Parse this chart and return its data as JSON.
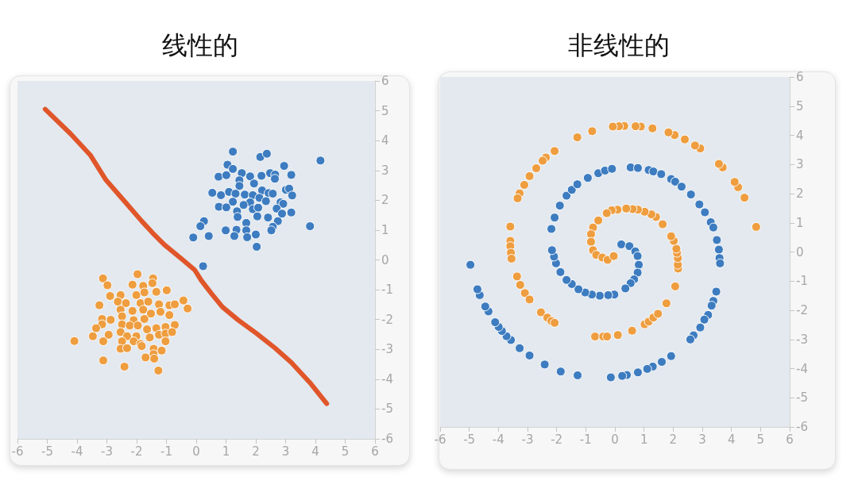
{
  "chart_data": [
    {
      "type": "scatter",
      "title": "线性的",
      "xlim": [
        -6,
        6
      ],
      "ylim": [
        -6,
        6
      ],
      "xticks": [
        -6,
        -5,
        -4,
        -3,
        -2,
        -1,
        0,
        1,
        2,
        3,
        4,
        5,
        6
      ],
      "yticks": [
        -6,
        -5,
        -4,
        -3,
        -2,
        -1,
        0,
        1,
        2,
        3,
        4,
        5,
        6
      ],
      "grid": false,
      "marker": "circle",
      "series": [
        {
          "color": "#3d7cc0",
          "x": [
            1.23,
            2.15,
            2.37,
            4.17,
            1.05,
            1.23,
            2.95,
            0.75,
            1.01,
            1.53,
            1.45,
            1.81,
            2.19,
            2.48,
            2.65,
            3.19,
            1.94,
            2.64,
            1.45,
            0.54,
            0.83,
            1.1,
            1.32,
            1.63,
            1.9,
            2.21,
            2.43,
            2.57,
            3.01,
            3.12,
            3.22,
            1.23,
            1.81,
            2.12,
            2.34,
            2.83,
            2.92,
            0.76,
            1.01,
            1.59,
            1.37,
            1.9,
            2.08,
            2.7,
            3.19,
            2.88,
            1.39,
            2.05,
            2.41,
            2.74,
            1.68,
            0.26,
            0.14,
            3.82,
            2.57,
            2.52,
            0.99,
            1.35,
            1.68,
            -0.1,
            0.42,
            1.28,
            1.71,
            2.0,
            2.03,
            0.23
          ],
          "values": [
            3.63,
            3.45,
            3.56,
            3.33,
            3.19,
            3.05,
            3.15,
            2.79,
            2.84,
            2.91,
            2.67,
            2.8,
            2.82,
            2.91,
            2.86,
            2.85,
            2.56,
            2.72,
            2.48,
            2.25,
            2.17,
            2.28,
            2.22,
            2.19,
            2.17,
            2.33,
            2.24,
            2.22,
            2.35,
            2.39,
            2.16,
            1.95,
            1.93,
            2.08,
            1.97,
            1.93,
            1.88,
            1.78,
            1.76,
            1.84,
            1.63,
            1.7,
            1.75,
            1.72,
            1.59,
            1.55,
            1.44,
            1.46,
            1.42,
            1.3,
            1.24,
            1.3,
            1.13,
            1.13,
            1.11,
            0.99,
            0.99,
            1.01,
            0.99,
            0.75,
            0.8,
            0.8,
            0.76,
            0.85,
            0.44,
            -0.21
          ]
        },
        {
          "color": "#ee9d3f",
          "x": [
            -1.97,
            -3.13,
            -1.45,
            -2.98,
            -2.14,
            -1.78,
            -1.47,
            -0.99,
            -2.89,
            -2.54,
            -2.01,
            -1.74,
            -1.34,
            -0.43,
            -0.29,
            -3.25,
            -2.63,
            -2.36,
            -1.87,
            -1.61,
            -1.25,
            -0.9,
            -0.72,
            -2.54,
            -2.14,
            -1.78,
            -1.2,
            -3.16,
            -2.87,
            -2.49,
            -2.1,
            -1.74,
            -1.52,
            -0.9,
            -3.16,
            -3.36,
            -2.49,
            -2.23,
            -1.96,
            -1.65,
            -1.34,
            -1.03,
            -0.72,
            -3.47,
            -2.94,
            -2.54,
            -2.32,
            -2.01,
            -1.56,
            -1.25,
            -1.03,
            -0.81,
            -4.09,
            -3.12,
            -2.49,
            -2.1,
            -1.87,
            -1.03,
            -2.54,
            -2.32,
            -1.83,
            -1.43,
            -1.16,
            -1.43,
            -1.7,
            -1.41,
            -3.12,
            -2.41,
            -1.27
          ],
          "values": [
            -0.48,
            -0.62,
            -0.62,
            -0.85,
            -0.83,
            -0.87,
            -0.78,
            -1.02,
            -1.21,
            -1.18,
            -1.18,
            -1.09,
            -1.07,
            -1.36,
            -1.63,
            -1.52,
            -1.4,
            -1.45,
            -1.45,
            -1.4,
            -1.49,
            -1.52,
            -1.49,
            -1.67,
            -1.71,
            -1.67,
            -1.74,
            -1.98,
            -2.01,
            -1.89,
            -2.02,
            -1.98,
            -1.8,
            -1.85,
            -2.16,
            -2.29,
            -2.16,
            -2.2,
            -2.2,
            -2.33,
            -2.29,
            -2.25,
            -2.18,
            -2.56,
            -2.51,
            -2.42,
            -2.56,
            -2.56,
            -2.6,
            -2.51,
            -2.47,
            -2.42,
            -2.72,
            -2.73,
            -2.73,
            -2.73,
            -2.82,
            -2.73,
            -2.98,
            -2.96,
            -2.89,
            -2.98,
            -3.04,
            -3.16,
            -3.27,
            -3.31,
            -3.37,
            -3.58,
            -3.71
          ]
        },
        {
          "type": "line",
          "color": "#e0562a",
          "marker": "none",
          "x": [
            -5.07,
            -4.22,
            -3.56,
            -3.03,
            -2.41,
            -1.83,
            -1.47,
            -1.07,
            -0.45,
            -0.05,
            0.17,
            0.52,
            0.88,
            1.41,
            2.03,
            2.65,
            3.19,
            3.81,
            4.38
          ],
          "values": [
            5.05,
            4.23,
            3.52,
            2.68,
            1.97,
            1.3,
            0.91,
            0.51,
            0,
            -0.34,
            -0.69,
            -1.14,
            -1.58,
            -2.02,
            -2.47,
            -2.96,
            -3.44,
            -4.11,
            -4.82
          ]
        }
      ]
    },
    {
      "type": "scatter",
      "title": "非线性的",
      "xlim": [
        -6,
        6
      ],
      "ylim": [
        -6,
        6
      ],
      "xticks": [
        -6,
        -5,
        -4,
        -3,
        -2,
        -1,
        0,
        1,
        2,
        3,
        4,
        5,
        6
      ],
      "yticks": [
        -6,
        -5,
        -4,
        -3,
        -2,
        -1,
        0,
        1,
        2,
        3,
        4,
        5,
        6
      ],
      "grid": false,
      "marker": "circle",
      "series": [
        {
          "color": "#ee9d3f",
          "x": [
            4.85,
            4.45,
            4.23,
            4.11,
            3.7,
            3.57,
            2.93,
            2.75,
            2.4,
            2.05,
            1.84,
            1.29,
            0.89,
            0.71,
            0.32,
            0.14,
            -0.07,
            -0.78,
            -1.29,
            -2.07,
            -2.37,
            -2.48,
            -2.7,
            -2.93,
            -3.11,
            -3.27,
            -3.34,
            -3.59,
            -3.59,
            -3.59,
            -3.57,
            -3.55,
            -3.36,
            -3.25,
            -3.09,
            -2.93,
            -2.54,
            -2.32,
            -2.18,
            -2.07,
            -0.68,
            -0.4,
            -0.27,
            0.1,
            0.59,
            1.02,
            1.16,
            1.32,
            1.48,
            1.77,
            2.07,
            2.17,
            2.16,
            2.16,
            2.13,
            2.11,
            2.02,
            1.93,
            1.64,
            1.41,
            1.25,
            1.02,
            0.79,
            0.61,
            0.39,
            0.09,
            -0.11,
            -0.28,
            -0.57,
            -0.75,
            -0.82,
            -0.82,
            -0.75,
            -0.64,
            -0.43,
            -0.25,
            -0.04
          ],
          "values": [
            0.86,
            1.86,
            2.22,
            2.4,
            2.9,
            3.02,
            3.55,
            3.65,
            3.86,
            4.01,
            4.1,
            4.24,
            4.3,
            4.31,
            4.32,
            4.31,
            4.3,
            4.14,
            3.93,
            3.46,
            3.24,
            3.13,
            2.87,
            2.6,
            2.3,
            2.01,
            1.84,
            0.87,
            0.38,
            0.2,
            -0.03,
            -0.23,
            -0.84,
            -1.13,
            -1.41,
            -1.63,
            -2.07,
            -2.25,
            -2.37,
            -2.43,
            -2.9,
            -2.9,
            -2.9,
            -2.85,
            -2.7,
            -2.48,
            -2.39,
            -2.25,
            -2.12,
            -1.76,
            -1.18,
            -0.57,
            -0.44,
            -0.21,
            -0.03,
            0.11,
            0.38,
            0.54,
            0.95,
            1.2,
            1.29,
            1.38,
            1.45,
            1.47,
            1.49,
            1.45,
            1.43,
            1.33,
            1.08,
            0.84,
            0.61,
            0.35,
            0.06,
            -0.1,
            -0.19,
            -0.27,
            -0.14
          ]
        },
        {
          "color": "#3d7cc0",
          "x": [
            0.22,
            0.5,
            0.7,
            0.78,
            0.82,
            0.78,
            0.66,
            0.54,
            0.36,
            -0.02,
            -0.23,
            -0.52,
            -0.79,
            -1.02,
            -1.25,
            -1.48,
            -1.66,
            -1.87,
            -2.02,
            -2.09,
            -2.16,
            -2.18,
            -2.07,
            -1.89,
            -1.66,
            -1.48,
            -1.29,
            -0.93,
            -0.57,
            -0.34,
            -0.1,
            0.54,
            0.79,
            1.16,
            1.32,
            1.59,
            1.93,
            2.07,
            2.29,
            2.61,
            2.9,
            3.09,
            3.29,
            3.38,
            3.5,
            3.57,
            3.59,
            3.61,
            3.48,
            3.38,
            3.32,
            3.2,
            3.07,
            2.93,
            2.7,
            2.59,
            1.93,
            1.61,
            1.3,
            1.11,
            0.79,
            0.41,
            0.25,
            -0.14,
            -1.28,
            -1.86,
            -2.41,
            -2.93,
            -3.27,
            -3.57,
            -3.72,
            -3.88,
            -3.99,
            -4.11,
            -4.34,
            -4.45,
            -4.64,
            -4.72,
            -4.96
          ],
          "values": [
            0.26,
            0.2,
            0.02,
            -0.14,
            -0.44,
            -0.71,
            -0.94,
            -1.07,
            -1.25,
            -1.46,
            -1.48,
            -1.5,
            -1.46,
            -1.39,
            -1.28,
            -1.1,
            -0.96,
            -0.69,
            -0.39,
            -0.16,
            0.06,
            0.79,
            1.18,
            1.59,
            1.93,
            2.13,
            2.32,
            2.54,
            2.7,
            2.79,
            2.85,
            2.9,
            2.88,
            2.81,
            2.76,
            2.67,
            2.5,
            2.41,
            2.24,
            1.97,
            1.63,
            1.36,
            1.02,
            0.84,
            0.41,
            0.08,
            -0.21,
            -0.39,
            -1.36,
            -1.68,
            -1.84,
            -2.16,
            -2.32,
            -2.59,
            -2.86,
            -3.0,
            -3.57,
            -3.77,
            -3.93,
            -4.01,
            -4.13,
            -4.22,
            -4.25,
            -4.3,
            -4.23,
            -4.1,
            -3.86,
            -3.55,
            -3.3,
            -3.02,
            -2.89,
            -2.71,
            -2.57,
            -2.41,
            -2.04,
            -1.87,
            -1.48,
            -1.28,
            -0.44
          ]
        }
      ]
    }
  ]
}
